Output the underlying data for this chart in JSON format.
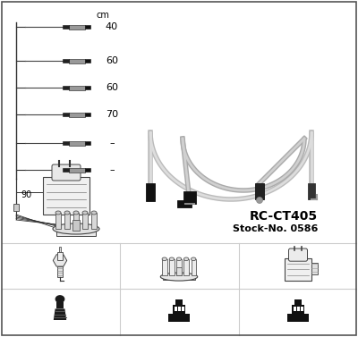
{
  "bg_color": "#ffffff",
  "title_line1": "RC-CT405",
  "title_line2": "Stock-No. 0586",
  "wire_lengths": [
    "40",
    "60",
    "60",
    "70",
    "–",
    "–"
  ],
  "cm_label": "cm",
  "coil_label": "90",
  "border_color": "#555555",
  "grid_color": "#cccccc",
  "wire_color": "#aaaaaa",
  "dark": "#111111",
  "mid_gray": "#888888",
  "light_gray": "#dddddd",
  "sketch_color": "#444444"
}
